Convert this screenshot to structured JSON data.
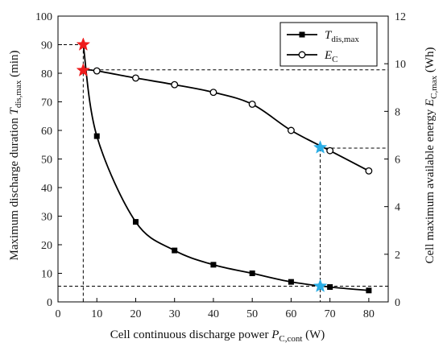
{
  "chart_data": {
    "type": "line",
    "x": [
      6.5,
      10,
      20,
      30,
      40,
      50,
      60,
      67.5,
      70,
      80
    ],
    "xlim": [
      0,
      85
    ],
    "xticks": [
      0,
      10,
      20,
      30,
      40,
      50,
      60,
      70,
      80
    ],
    "ylim_left": [
      0,
      100
    ],
    "yticks_left": [
      0,
      10,
      20,
      30,
      40,
      50,
      60,
      70,
      80,
      90,
      100
    ],
    "ylim_right": [
      0,
      12
    ],
    "yticks_right": [
      0,
      2,
      4,
      6,
      8,
      10,
      12
    ],
    "xlabel": {
      "main": "Cell continuous discharge power ",
      "sym": "P",
      "sub": "C,cont",
      "unit": " (W)"
    },
    "ylabel_left": {
      "main": "Maximum discharge duration ",
      "sym": "T",
      "sub": "dis,max",
      "unit": " (min)"
    },
    "ylabel_right": {
      "main": "Cell maximum available energy ",
      "sym": "E",
      "sub": "C,max",
      "unit": " (Wh)"
    },
    "series": [
      {
        "name": {
          "sym": "T",
          "sub": "dis,max"
        },
        "axis": "left",
        "marker": "square",
        "points": [
          [
            10,
            58
          ],
          [
            20,
            28
          ],
          [
            30,
            18
          ],
          [
            40,
            13
          ],
          [
            50,
            10
          ],
          [
            60,
            7
          ],
          [
            70,
            5.2
          ],
          [
            80,
            4
          ]
        ],
        "curve_start": [
          6.5,
          90
        ],
        "curve_end": [
          80,
          4
        ]
      },
      {
        "name": {
          "sym": "E",
          "sub": "C"
        },
        "axis": "right",
        "marker": "circle",
        "points": [
          [
            10,
            9.7
          ],
          [
            20,
            9.4
          ],
          [
            30,
            9.12
          ],
          [
            40,
            8.8
          ],
          [
            50,
            8.3
          ],
          [
            60,
            7.2
          ],
          [
            70,
            6.35
          ],
          [
            80,
            5.5
          ]
        ],
        "curve_start": [
          6.5,
          9.75
        ],
        "curve_end": [
          80,
          5.5
        ]
      }
    ],
    "stars": [
      {
        "x": 6.5,
        "y": 90,
        "axis": "left",
        "color": "#ee1c1c"
      },
      {
        "x": 6.5,
        "y": 81,
        "axis": "left",
        "color": "#ee1c1c"
      },
      {
        "x": 67.5,
        "y": 54,
        "axis": "left",
        "color": "#2aaee6"
      },
      {
        "x": 67.5,
        "y": 5.5,
        "axis": "left",
        "color": "#2aaee6"
      }
    ],
    "guides": [
      {
        "from": [
          0,
          90
        ],
        "to": [
          6.5,
          90
        ],
        "axis": "left"
      },
      {
        "from": [
          6.5,
          90
        ],
        "to": [
          6.5,
          0
        ],
        "axis": "left"
      },
      {
        "from": [
          6.5,
          81.2
        ],
        "to": [
          85,
          81.2
        ],
        "axis": "left"
      },
      {
        "from": [
          67.5,
          53.8
        ],
        "to": [
          85,
          53.8
        ],
        "axis": "left"
      },
      {
        "from": [
          67.5,
          53.8
        ],
        "to": [
          67.5,
          0
        ],
        "axis": "left"
      },
      {
        "from": [
          0,
          5.5
        ],
        "to": [
          85,
          5.5
        ],
        "axis": "left"
      }
    ],
    "legend_position": "top-right",
    "grid": false
  },
  "colors": {
    "line": "#000000",
    "star_red": "#ee1c1c",
    "star_blue": "#2aaee6"
  }
}
